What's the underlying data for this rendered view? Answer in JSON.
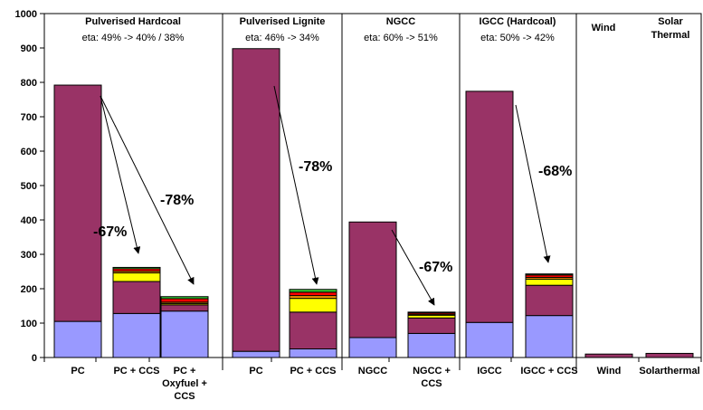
{
  "chart_data": {
    "type": "bar",
    "stacked": true,
    "ylim": [
      0,
      1000
    ],
    "yticks": [
      "0",
      "100",
      "200",
      "300",
      "400",
      "500",
      "600",
      "700",
      "800",
      "900",
      "1000"
    ],
    "grid": false,
    "colors": {
      "base": "#9999ff",
      "main": "#993366",
      "yellow": "#ffff00",
      "orange": "#ff9900",
      "red": "#ff0000",
      "green": "#33cc33"
    },
    "groups": [
      {
        "title": "Pulverised Hardcoal",
        "eta": "eta: 49% -> 40% / 38%"
      },
      {
        "title": "Pulverised Lignite",
        "eta": "eta: 46% -> 34%"
      },
      {
        "title": "NGCC",
        "eta": "eta: 60% -> 51%"
      },
      {
        "title": "IGCC (Hardcoal)",
        "eta": "eta: 50% -> 42%"
      },
      {
        "title": "Wind",
        "eta": ""
      },
      {
        "title": "Solar Thermal",
        "eta": ""
      }
    ],
    "bars": [
      {
        "label": [
          "PC"
        ],
        "segments": [
          {
            "c": "base",
            "v": 105
          },
          {
            "c": "main",
            "v": 687
          }
        ]
      },
      {
        "label": [
          "PC + CCS"
        ],
        "segments": [
          {
            "c": "base",
            "v": 128
          },
          {
            "c": "main",
            "v": 93
          },
          {
            "c": "yellow",
            "v": 25
          },
          {
            "c": "orange",
            "v": 5
          },
          {
            "c": "red",
            "v": 7
          },
          {
            "c": "green",
            "v": 4
          }
        ]
      },
      {
        "label": [
          "PC +",
          "Oxyfuel +",
          "CCS"
        ],
        "segments": [
          {
            "c": "base",
            "v": 135
          },
          {
            "c": "main",
            "v": 18
          },
          {
            "c": "yellow",
            "v": 4
          },
          {
            "c": "orange",
            "v": 4
          },
          {
            "c": "red",
            "v": 10
          },
          {
            "c": "green",
            "v": 6
          }
        ]
      },
      {
        "label": [
          "PC"
        ],
        "segments": [
          {
            "c": "base",
            "v": 18
          },
          {
            "c": "main",
            "v": 880
          }
        ]
      },
      {
        "label": [
          "PC + CCS"
        ],
        "segments": [
          {
            "c": "base",
            "v": 25
          },
          {
            "c": "main",
            "v": 107
          },
          {
            "c": "yellow",
            "v": 40
          },
          {
            "c": "orange",
            "v": 8
          },
          {
            "c": "red",
            "v": 10
          },
          {
            "c": "green",
            "v": 8
          }
        ]
      },
      {
        "label": [
          "NGCC"
        ],
        "segments": [
          {
            "c": "base",
            "v": 58
          },
          {
            "c": "main",
            "v": 336
          }
        ]
      },
      {
        "label": [
          "NGCC +",
          "CCS"
        ],
        "segments": [
          {
            "c": "base",
            "v": 70
          },
          {
            "c": "main",
            "v": 45
          },
          {
            "c": "yellow",
            "v": 8
          },
          {
            "c": "orange",
            "v": 3
          },
          {
            "c": "red",
            "v": 4
          },
          {
            "c": "green",
            "v": 2
          }
        ]
      },
      {
        "label": [
          "IGCC"
        ],
        "segments": [
          {
            "c": "base",
            "v": 102
          },
          {
            "c": "main",
            "v": 672
          }
        ]
      },
      {
        "label": [
          "IGCC + CCS"
        ],
        "segments": [
          {
            "c": "base",
            "v": 122
          },
          {
            "c": "main",
            "v": 88
          },
          {
            "c": "yellow",
            "v": 18
          },
          {
            "c": "orange",
            "v": 5
          },
          {
            "c": "red",
            "v": 7
          },
          {
            "c": "green",
            "v": 3
          }
        ]
      },
      {
        "label": [
          "Wind"
        ],
        "segments": [
          {
            "c": "main",
            "v": 10
          }
        ]
      },
      {
        "label": [
          "Solarthermal"
        ],
        "segments": [
          {
            "c": "main",
            "v": 12
          }
        ]
      }
    ],
    "annotations": [
      "-67%",
      "-78%",
      "-78%",
      "-67%",
      "-68%"
    ]
  }
}
